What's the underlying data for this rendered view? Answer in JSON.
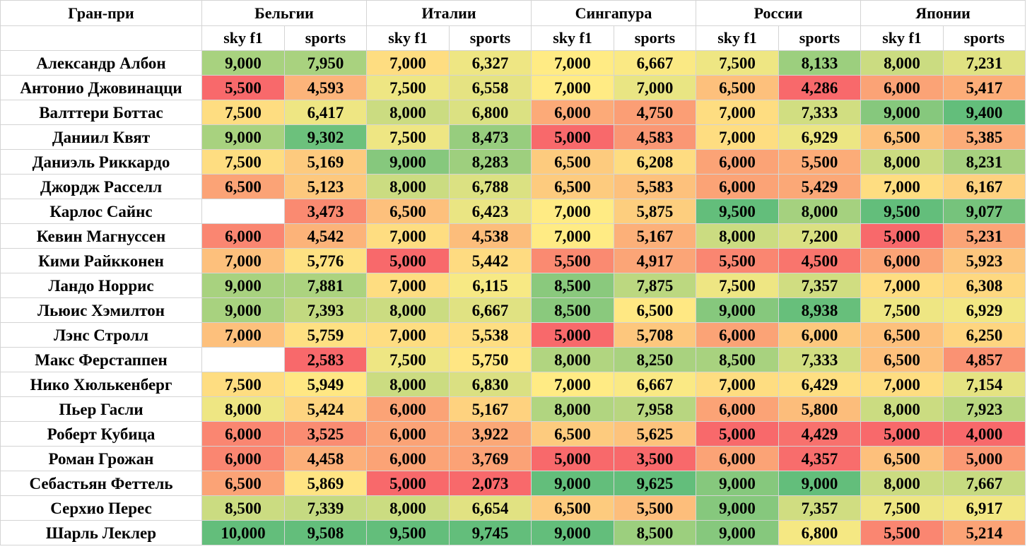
{
  "header": {
    "label": "Гран-при",
    "races": [
      "Бельгии",
      "Италии",
      "Сингапура",
      "России",
      "Японии"
    ],
    "channels": [
      "sky f1",
      "sports"
    ]
  },
  "rows": [
    {
      "driver": "Александр Албон",
      "values": [
        "9,000",
        "7,950",
        "7,000",
        "6,327",
        "7,000",
        "6,667",
        "7,500",
        "8,133",
        "8,000",
        "7,231"
      ]
    },
    {
      "driver": "Антонио Джовинацци",
      "values": [
        "5,500",
        "4,593",
        "7,500",
        "6,558",
        "7,000",
        "7,000",
        "6,500",
        "4,286",
        "6,000",
        "5,417"
      ]
    },
    {
      "driver": "Валттери Боттас",
      "values": [
        "7,500",
        "6,417",
        "8,000",
        "6,800",
        "6,000",
        "4,750",
        "7,000",
        "7,333",
        "9,000",
        "9,400"
      ]
    },
    {
      "driver": "Даниил Квят",
      "values": [
        "9,000",
        "9,302",
        "7,500",
        "8,473",
        "5,000",
        "4,583",
        "7,000",
        "6,929",
        "6,500",
        "5,385"
      ]
    },
    {
      "driver": "Даниэль Риккардо",
      "values": [
        "7,500",
        "5,169",
        "9,000",
        "8,283",
        "6,500",
        "6,208",
        "6,000",
        "5,500",
        "8,000",
        "8,231"
      ]
    },
    {
      "driver": "Джордж Расселл",
      "values": [
        "6,500",
        "5,123",
        "8,000",
        "6,788",
        "6,500",
        "5,583",
        "6,000",
        "5,429",
        "7,000",
        "6,167"
      ]
    },
    {
      "driver": "Карлос Сайнс",
      "values": [
        "",
        "3,473",
        "6,500",
        "6,423",
        "7,000",
        "5,875",
        "9,500",
        "8,000",
        "9,500",
        "9,077"
      ]
    },
    {
      "driver": "Кевин Магнуссен",
      "values": [
        "6,000",
        "4,542",
        "7,000",
        "4,538",
        "7,000",
        "5,167",
        "8,000",
        "7,200",
        "5,000",
        "5,231"
      ]
    },
    {
      "driver": "Кими Райкконен",
      "values": [
        "7,000",
        "5,776",
        "5,000",
        "5,442",
        "5,500",
        "4,917",
        "5,500",
        "4,500",
        "6,000",
        "5,923"
      ]
    },
    {
      "driver": "Ландо Норрис",
      "values": [
        "9,000",
        "7,881",
        "7,000",
        "6,115",
        "8,500",
        "7,875",
        "7,500",
        "7,357",
        "7,000",
        "6,308"
      ]
    },
    {
      "driver": "Льюис Хэмилтон",
      "values": [
        "9,000",
        "7,393",
        "8,000",
        "6,667",
        "8,500",
        "6,500",
        "9,000",
        "8,938",
        "7,500",
        "6,929"
      ]
    },
    {
      "driver": "Лэнс Стролл",
      "values": [
        "7,000",
        "5,759",
        "7,000",
        "5,538",
        "5,000",
        "5,708",
        "6,000",
        "6,000",
        "6,500",
        "6,250"
      ]
    },
    {
      "driver": "Макс Ферстаппен",
      "values": [
        "",
        "2,583",
        "7,500",
        "5,750",
        "8,000",
        "8,250",
        "8,500",
        "7,333",
        "6,500",
        "4,857"
      ]
    },
    {
      "driver": "Нико Хюлькенберг",
      "values": [
        "7,500",
        "5,949",
        "8,000",
        "6,830",
        "7,000",
        "6,667",
        "7,000",
        "6,429",
        "7,000",
        "7,154"
      ]
    },
    {
      "driver": "Пьер Гасли",
      "values": [
        "8,000",
        "5,424",
        "6,000",
        "5,167",
        "8,000",
        "7,958",
        "6,000",
        "5,800",
        "8,000",
        "7,923"
      ]
    },
    {
      "driver": "Роберт Кубица",
      "values": [
        "6,000",
        "3,525",
        "6,000",
        "3,922",
        "6,500",
        "5,625",
        "5,000",
        "4,429",
        "5,000",
        "4,000"
      ]
    },
    {
      "driver": "Роман Грожан",
      "values": [
        "6,000",
        "4,458",
        "6,000",
        "3,769",
        "5,000",
        "3,500",
        "6,000",
        "4,357",
        "6,500",
        "5,000"
      ]
    },
    {
      "driver": "Себастьян Феттель",
      "values": [
        "6,500",
        "5,869",
        "5,000",
        "2,073",
        "9,000",
        "9,625",
        "9,000",
        "9,000",
        "8,000",
        "7,667"
      ]
    },
    {
      "driver": "Серхио Перес",
      "values": [
        "8,500",
        "7,339",
        "8,000",
        "6,654",
        "6,500",
        "5,500",
        "9,000",
        "7,357",
        "7,500",
        "6,917"
      ]
    },
    {
      "driver": "Шарль Леклер",
      "values": [
        "10,000",
        "9,508",
        "9,500",
        "9,745",
        "9,000",
        "8,500",
        "9,000",
        "6,800",
        "5,500",
        "5,214"
      ]
    }
  ],
  "colors": {
    "low": "#f8696b",
    "mid": "#ffeb84",
    "high": "#63be7b",
    "gridline": "#d4d4d4"
  }
}
